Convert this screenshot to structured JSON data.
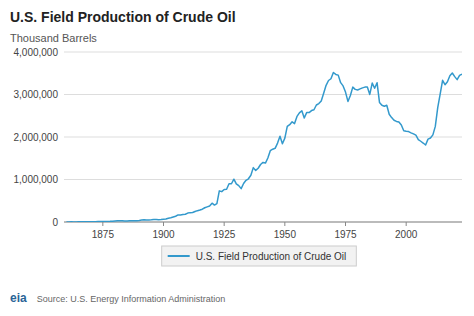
{
  "chart_data": {
    "type": "line",
    "title": "U.S. Field Production of Crude Oil",
    "y_label": "Thousand Barrels",
    "annotations": [
      "eia",
      "Source: U.S. Energy Information Administration"
    ],
    "x": [
      1860,
      1861,
      1862,
      1863,
      1864,
      1865,
      1866,
      1867,
      1868,
      1869,
      1870,
      1871,
      1872,
      1873,
      1874,
      1875,
      1876,
      1877,
      1878,
      1879,
      1880,
      1881,
      1882,
      1883,
      1884,
      1885,
      1886,
      1887,
      1888,
      1889,
      1890,
      1891,
      1892,
      1893,
      1894,
      1895,
      1896,
      1897,
      1898,
      1899,
      1900,
      1901,
      1902,
      1903,
      1904,
      1905,
      1906,
      1907,
      1908,
      1909,
      1910,
      1911,
      1912,
      1913,
      1914,
      1915,
      1916,
      1917,
      1918,
      1919,
      1920,
      1921,
      1922,
      1923,
      1924,
      1925,
      1926,
      1927,
      1928,
      1929,
      1930,
      1931,
      1932,
      1933,
      1934,
      1935,
      1936,
      1937,
      1938,
      1939,
      1940,
      1941,
      1942,
      1943,
      1944,
      1945,
      1946,
      1947,
      1948,
      1949,
      1950,
      1951,
      1952,
      1953,
      1954,
      1955,
      1956,
      1957,
      1958,
      1959,
      1960,
      1961,
      1962,
      1963,
      1964,
      1965,
      1966,
      1967,
      1968,
      1969,
      1970,
      1971,
      1972,
      1973,
      1974,
      1975,
      1976,
      1977,
      1978,
      1979,
      1980,
      1981,
      1982,
      1983,
      1984,
      1985,
      1986,
      1987,
      1988,
      1989,
      1990,
      1991,
      1992,
      1993,
      1994,
      1995,
      1996,
      1997,
      1998,
      1999,
      2000,
      2001,
      2002,
      2003,
      2004,
      2005,
      2006,
      2007,
      2008,
      2009,
      2010,
      2011,
      2012,
      2013,
      2014,
      2015,
      2016,
      2017,
      2018,
      2019,
      2020,
      2021,
      2022,
      2023
    ],
    "series": [
      {
        "name": "U.S. Field Production of Crude Oil",
        "color": "#3399cc",
        "values": [
          500,
          2114,
          3057,
          2611,
          2116,
          3237,
          3597,
          3347,
          3640,
          4215,
          5261,
          5205,
          6293,
          9894,
          10927,
          11250,
          9133,
          13350,
          15397,
          19914,
          26286,
          27661,
          30350,
          27000,
          24218,
          21859,
          28065,
          28000,
          27612,
          32182,
          35163,
          45824,
          50515,
          48431,
          49344,
          52892,
          60960,
          60476,
          55364,
          57071,
          63621,
          69389,
          88767,
          100461,
          117080,
          134685,
          166274,
          166095,
          178527,
          183171,
          209557,
          220449,
          222946,
          248445,
          266763,
          281431,
          300767,
          335316,
          355927,
          377576,
          442929,
          397677,
          431729,
          732407,
          713940,
          763741,
          770874,
          900798,
          900070,
          1007323,
          898011,
          855852,
          785159,
          906956,
          981506,
          1016708,
          1099021,
          1279202,
          1214355,
          1264987,
          1353214,
          1402228,
          1386645,
          1505585,
          1677904,
          1713655,
          1733781,
          1856987,
          2019600,
          1841940,
          1973574,
          2247711,
          2290400,
          2357082,
          2314988,
          2484428,
          2566916,
          2617283,
          2448674,
          2573726,
          2573901,
          2621758,
          2641310,
          2752723,
          2786822,
          2848955,
          3027763,
          3215742,
          3329000,
          3371000,
          3517450,
          3472200,
          3455600,
          3278400,
          3202400,
          3056780,
          2837098,
          2977300,
          3174000,
          3120900,
          3105900,
          3131000,
          3156000,
          3174000,
          3174500,
          3002630,
          3269000,
          3147000,
          3278000,
          2813000,
          2747000,
          2724000,
          2747000,
          2536000,
          2457000,
          2394000,
          2366000,
          2351000,
          2282000,
          2147000,
          2135000,
          2128000,
          2097000,
          2073000,
          2043000,
          1940000,
          1900000,
          1858000,
          1812000,
          1950000,
          1975000,
          2050000,
          2250000,
          2693000,
          3007000,
          3333000,
          3230000,
          3300000,
          3440000,
          3505000,
          3420000,
          3350000,
          3450000,
          3480000
        ]
      }
    ],
    "xlim": [
      1859,
      2023
    ],
    "xticks": [
      1875,
      1900,
      1925,
      1950,
      1975,
      2000
    ],
    "ylim": [
      0,
      4000000
    ],
    "yticks": [
      {
        "value": 0,
        "label": "0"
      },
      {
        "value": 1000000,
        "label": "1,000,000"
      },
      {
        "value": 2000000,
        "label": "2,000,000"
      },
      {
        "value": 3000000,
        "label": "3,000,000"
      },
      {
        "value": 4000000,
        "label": "4,000,000"
      }
    ],
    "grid": true,
    "legend": "bottom"
  }
}
